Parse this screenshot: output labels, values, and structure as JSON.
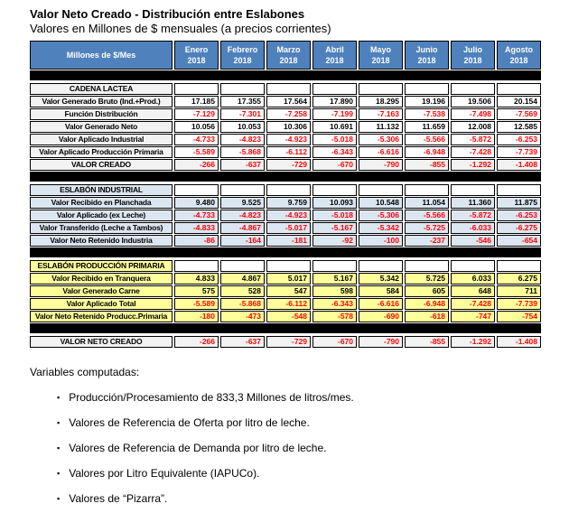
{
  "title": "Valor Neto Creado - Distribución entre Eslabones",
  "subtitle": "Valores en Millones de $ mensuales (a precios corrientes)",
  "colors": {
    "header_bg": "#4F81BD",
    "header_text": "#FFFFFF",
    "gray": "#F2F2F2",
    "blue": "#DCE6F1",
    "yellow": "#FFFF99",
    "white": "#FFFFFF",
    "negative_text": "#FF0000",
    "positive_text": "#000000",
    "separator": "#000000"
  },
  "table": {
    "corner_label": "Millones de $/Mes",
    "months": [
      {
        "name": "Enero",
        "year": "2018"
      },
      {
        "name": "Febrero",
        "year": "2018"
      },
      {
        "name": "Marzo",
        "year": "2018"
      },
      {
        "name": "Abril",
        "year": "2018"
      },
      {
        "name": "Mayo",
        "year": "2018"
      },
      {
        "name": "Junio",
        "year": "2018"
      },
      {
        "name": "Julio",
        "year": "2018"
      },
      {
        "name": "Agosto",
        "year": "2018"
      }
    ],
    "rows": [
      {
        "kind": "separator"
      },
      {
        "kind": "section",
        "label": "CADENA LACTEA",
        "label_bg": "gray",
        "value_bg": "white"
      },
      {
        "kind": "data",
        "label": "Valor Generado Bruto (Ind.+Prod.)",
        "label_bg": "gray",
        "value_bg": "white",
        "negative": false,
        "values": [
          "17.185",
          "17.355",
          "17.564",
          "17.890",
          "18.295",
          "19.196",
          "19.506",
          "20.154"
        ]
      },
      {
        "kind": "data",
        "label": "Función Distribución",
        "label_bg": "gray",
        "value_bg": "white",
        "negative": true,
        "values": [
          "-7.129",
          "-7.301",
          "-7.258",
          "-7.199",
          "-7.163",
          "-7.538",
          "-7.498",
          "-7.569"
        ]
      },
      {
        "kind": "data",
        "label": "Valor Generado Neto",
        "label_bg": "gray",
        "value_bg": "white",
        "negative": false,
        "values": [
          "10.056",
          "10.053",
          "10.306",
          "10.691",
          "11.132",
          "11.659",
          "12.008",
          "12.585"
        ]
      },
      {
        "kind": "data",
        "label": "Valor Aplicado Industrial",
        "label_bg": "gray",
        "value_bg": "white",
        "negative": true,
        "values": [
          "-4.733",
          "-4.823",
          "-4.923",
          "-5.018",
          "-5.306",
          "-5.566",
          "-5.872",
          "-6.253"
        ]
      },
      {
        "kind": "data",
        "label": "Valor Aplicado Producción Primaria",
        "label_bg": "gray",
        "value_bg": "white",
        "negative": true,
        "values": [
          "-5.589",
          "-5.868",
          "-6.112",
          "-6.343",
          "-6.616",
          "-6.948",
          "-7.428",
          "-7.739"
        ]
      },
      {
        "kind": "total",
        "label": "VALOR CREADO",
        "label_bg": "gray",
        "value_bg": "gray",
        "negative": true,
        "values": [
          "-266",
          "-637",
          "-729",
          "-670",
          "-790",
          "-855",
          "-1.292",
          "-1.408"
        ]
      },
      {
        "kind": "separator"
      },
      {
        "kind": "section",
        "label": "ESLABÓN INDUSTRIAL",
        "label_bg": "blue",
        "value_bg": "white"
      },
      {
        "kind": "data",
        "label": "Valor Recibido en Planchada",
        "label_bg": "blue",
        "value_bg": "blue",
        "negative": false,
        "values": [
          "9.480",
          "9.525",
          "9.759",
          "10.093",
          "10.548",
          "11.054",
          "11.360",
          "11.875"
        ]
      },
      {
        "kind": "data",
        "label": "Valor Aplicado (ex Leche)",
        "label_bg": "blue",
        "value_bg": "blue",
        "negative": true,
        "values": [
          "-4.733",
          "-4.823",
          "-4.923",
          "-5.018",
          "-5.306",
          "-5.566",
          "-5.872",
          "-6.253"
        ]
      },
      {
        "kind": "data",
        "label": "Valor Transferido (Leche a Tambos)",
        "label_bg": "blue",
        "value_bg": "blue",
        "negative": true,
        "values": [
          "-4.833",
          "-4.867",
          "-5.017",
          "-5.167",
          "-5.342",
          "-5.725",
          "-6.033",
          "-6.275"
        ]
      },
      {
        "kind": "total",
        "label": "Valor Neto Retenido Industria",
        "label_bg": "blue",
        "value_bg": "blue",
        "negative": true,
        "values": [
          "-86",
          "-164",
          "-181",
          "-92",
          "-100",
          "-237",
          "-546",
          "-654"
        ]
      },
      {
        "kind": "separator"
      },
      {
        "kind": "section",
        "label": "ESLABÓN PRODUCCIÓN PRIMARIA",
        "label_bg": "yellow",
        "value_bg": "white"
      },
      {
        "kind": "data",
        "label": "Valor Recibido en Tranquera",
        "label_bg": "yellow",
        "value_bg": "yellow",
        "negative": false,
        "values": [
          "4.833",
          "4.867",
          "5.017",
          "5.167",
          "5.342",
          "5.725",
          "6.033",
          "6.275"
        ]
      },
      {
        "kind": "data",
        "label": "Valor Generado Carne",
        "label_bg": "yellow",
        "value_bg": "yellow",
        "negative": false,
        "values": [
          "575",
          "528",
          "547",
          "598",
          "584",
          "605",
          "648",
          "711"
        ]
      },
      {
        "kind": "data",
        "label": "Valor Aplicado Total",
        "label_bg": "yellow",
        "value_bg": "yellow",
        "negative": true,
        "values": [
          "-5.589",
          "-5.868",
          "-6.112",
          "-6.343",
          "-6.616",
          "-6.948",
          "-7.428",
          "-7.739"
        ]
      },
      {
        "kind": "total",
        "label": "Valor Neto Retenido Producc.Primaria",
        "label_bg": "yellow",
        "value_bg": "yellow",
        "negative": true,
        "values": [
          "-180",
          "-473",
          "-548",
          "-578",
          "-690",
          "-618",
          "-747",
          "-754"
        ]
      },
      {
        "kind": "separator"
      },
      {
        "kind": "total",
        "label": "VALOR NETO CREADO",
        "label_bg": "gray",
        "value_bg": "gray",
        "negative": true,
        "values": [
          "-266",
          "-637",
          "-729",
          "-670",
          "-790",
          "-855",
          "-1.292",
          "-1.408"
        ]
      }
    ]
  },
  "variables": {
    "heading": "Variables computadas:",
    "bullet_icon": "▪",
    "items": [
      "Producción/Procesamiento de 833,3 Millones de litros/mes.",
      "Valores de Referencia de Oferta por litro de leche.",
      "Valores de Referencia de Demanda por litro de leche.",
      "Valores por Litro Equivalente (IAPUCo).",
      "Valores de “Pizarra”."
    ]
  }
}
